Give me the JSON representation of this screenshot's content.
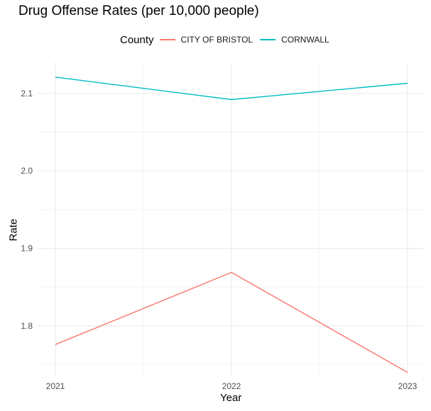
{
  "chart_data": {
    "type": "line",
    "title": "Drug Offense Rates (per 10,000 people)",
    "xlabel": "Year",
    "ylabel": "Rate",
    "legend_title": "County",
    "legend_position": "top",
    "grid": true,
    "x": [
      2021,
      2022,
      2023
    ],
    "xlim": [
      2021,
      2023
    ],
    "ylim": [
      1.735,
      2.14
    ],
    "yticks": [
      1.8,
      1.9,
      2.0,
      2.1
    ],
    "ytick_labels": [
      "1.8",
      "1.9",
      "2.0",
      "2.1"
    ],
    "xtick_labels": [
      "2021",
      "2022",
      "2023"
    ],
    "series": [
      {
        "name": "CITY OF BRISTOL",
        "color": "#F8766D",
        "values": [
          1.776,
          1.869,
          1.74
        ]
      },
      {
        "name": "CORNWALL",
        "color": "#00BFC4",
        "values": [
          2.121,
          2.092,
          2.113
        ]
      }
    ]
  }
}
